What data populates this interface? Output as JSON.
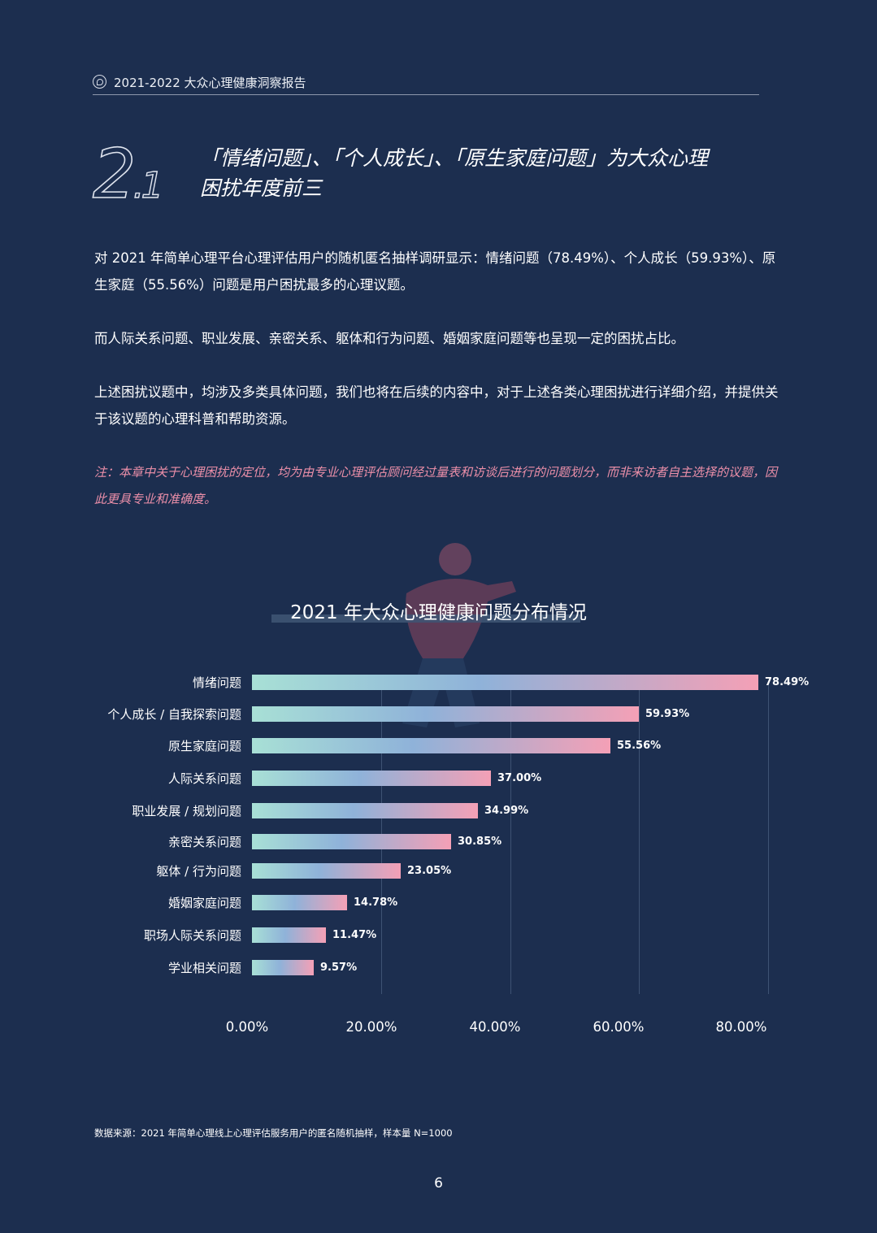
{
  "header": {
    "title": "2021-2022 大众心理健康洞察报告"
  },
  "section": {
    "number_main": "2",
    "number_sub": ".1",
    "title_line1": "「情绪问题」、「个人成长」、「原生家庭问题」为大众心理",
    "title_line2": "困扰年度前三"
  },
  "paragraphs": {
    "p1": "对 2021 年简单心理平台心理评估用户的随机匿名抽样调研显示：情绪问题（78.49%）、个人成长（59.93%）、原生家庭（55.56%）问题是用户困扰最多的心理议题。",
    "p2": "而人际关系问题、职业发展、亲密关系、躯体和行为问题、婚姻家庭问题等也呈现一定的困扰占比。",
    "p3": "上述困扰议题中，均涉及多类具体问题，我们也将在后续的内容中，对于上述各类心理困扰进行详细介绍，并提供关于该议题的心理科普和帮助资源。",
    "note": "注：本章中关于心理困扰的定位，均为由专业心理评估顾问经过量表和访谈后进行的问题划分，而非来访者自主选择的议题，因此更具专业和准确度。"
  },
  "chart_data": {
    "type": "bar",
    "orientation": "horizontal",
    "title": "2021 年大众心理健康问题分布情况",
    "categories": [
      "情绪问题",
      "个人成长 / 自我探索问题",
      "原生家庭问题",
      "人际关系问题",
      "职业发展 / 规划问题",
      "亲密关系问题",
      "躯体 / 行为问题",
      "婚姻家庭问题",
      "职场人际关系问题",
      "学业相关问题"
    ],
    "values": [
      78.49,
      59.93,
      55.56,
      37.0,
      34.99,
      30.85,
      23.05,
      14.78,
      11.47,
      9.57
    ],
    "value_labels": [
      "78.49%",
      "59.93%",
      "55.56%",
      "37.00%",
      "34.99%",
      "30.85%",
      "23.05%",
      "14.78%",
      "11.47%",
      "9.57%"
    ],
    "xlim": [
      0,
      80
    ],
    "x_ticks": [
      "0.00%",
      "20.00%",
      "40.00%",
      "60.00%",
      "80.00%"
    ],
    "grid": true,
    "bar_colors": [
      "#a8e0d6",
      "#8fb2d9",
      "#f4a0b6"
    ]
  },
  "footer": {
    "source": "数据来源：2021 年简单心理线上心理评估服务用户的匿名随机抽样，样本量 N=1000",
    "page": "6"
  }
}
